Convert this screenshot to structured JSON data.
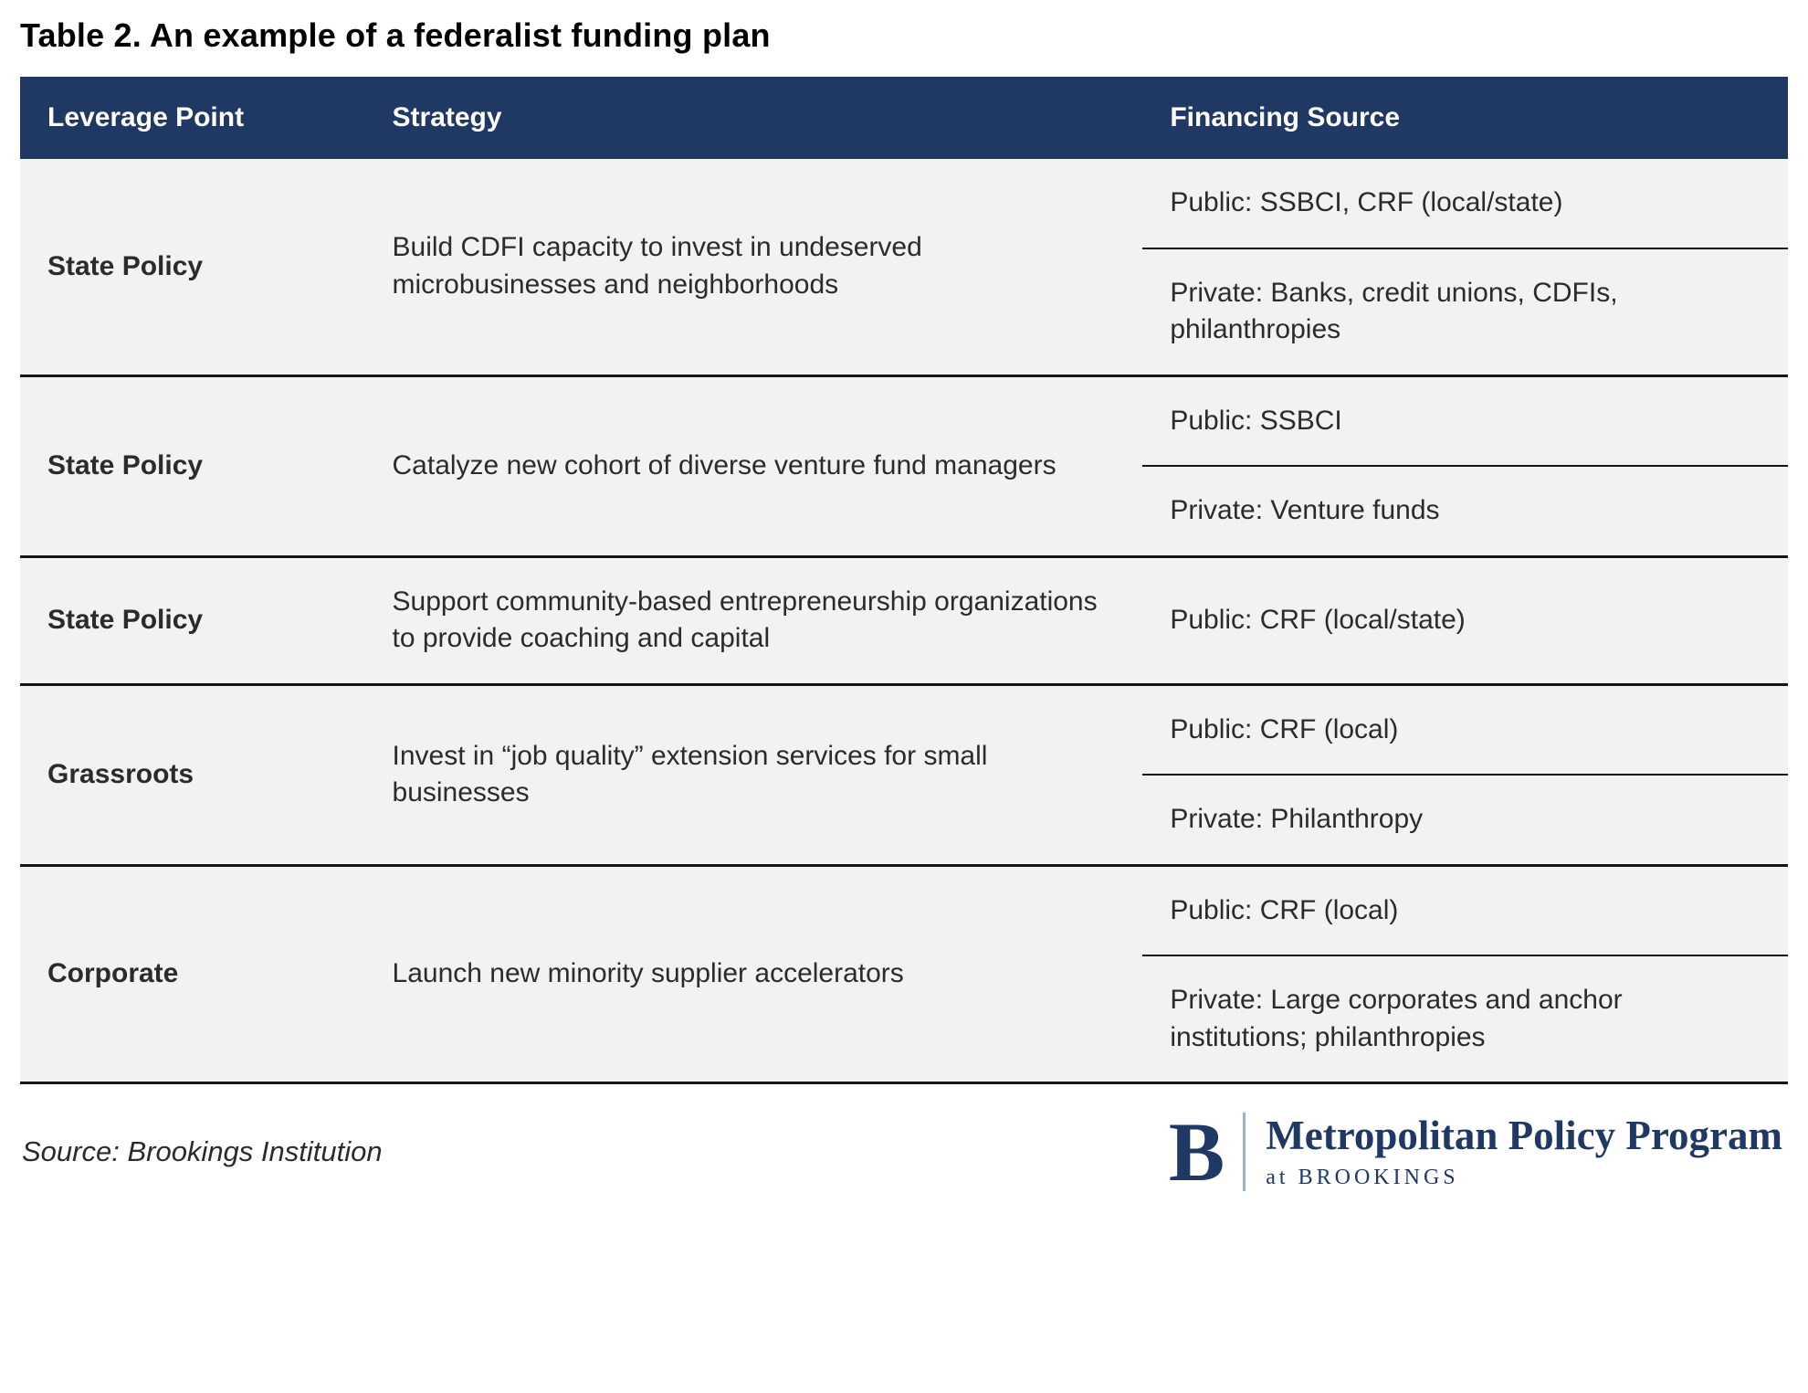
{
  "title": "Table 2. An example of a federalist funding plan",
  "table": {
    "headers": [
      "Leverage Point",
      "Strategy",
      "Financing Source"
    ],
    "rows": [
      {
        "leverage": "State Policy",
        "strategy": "Build CDFI capacity to invest in undeserved microbusinesses and neighborhoods",
        "financing": [
          "Public: SSBCI, CRF (local/state)",
          "Private: Banks, credit unions, CDFIs, philanthropies"
        ]
      },
      {
        "leverage": "State Policy",
        "strategy": "Catalyze new cohort of diverse venture fund managers",
        "financing": [
          "Public: SSBCI",
          "Private: Venture funds"
        ]
      },
      {
        "leverage": "State Policy",
        "strategy": "Support community-based entrepreneurship organizations to provide coaching and capital",
        "financing": [
          "Public: CRF (local/state)"
        ]
      },
      {
        "leverage": "Grassroots",
        "strategy": "Invest in “job quality” extension services for small businesses",
        "financing": [
          "Public: CRF (local)",
          "Private: Philanthropy"
        ]
      },
      {
        "leverage": "Corporate",
        "strategy": "Launch new minority supplier accelerators",
        "financing": [
          "Public: CRF (local)",
          "Private: Large corporates and anchor institutions; philanthropies"
        ]
      }
    ]
  },
  "footer": {
    "source": "Source: Brookings Institution",
    "logo": {
      "letter": "B",
      "program": "Metropolitan Policy Program",
      "sub": "at BROOKINGS"
    }
  },
  "colors": {
    "header_bg": "#1f3864",
    "row_bg": "#f2f2f2",
    "divider": "#141414",
    "brand_navy": "#1f3864"
  }
}
